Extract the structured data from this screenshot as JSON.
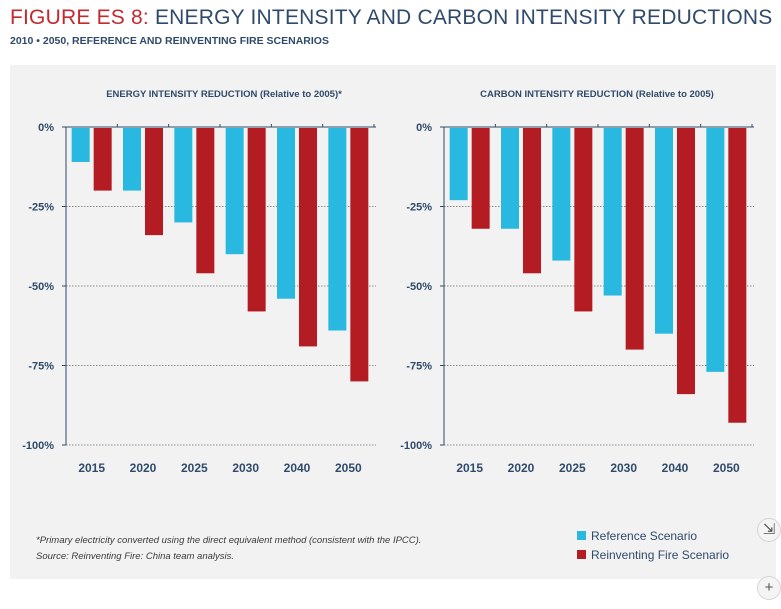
{
  "figure": {
    "title_prefix": "FIGURE ES 8:",
    "title_main": " ENERGY INTENSITY AND CARBON INTENSITY REDUCTIONS",
    "subtitle": "2010 • 2050, REFERENCE AND REINVENTING FIRE SCENARIOS"
  },
  "colors": {
    "reference": "#29b8df",
    "reinventing": "#b31c23",
    "axis": "#2f4a6a",
    "grid": "#8a8a8a"
  },
  "chart_data": [
    {
      "type": "bar",
      "title": "ENERGY INTENSITY REDUCTION (Relative to 2005)*",
      "categories": [
        "2015",
        "2020",
        "2025",
        "2030",
        "2040",
        "2050"
      ],
      "series": [
        {
          "name": "Reference Scenario",
          "values": [
            -11,
            -20,
            -30,
            -40,
            -54,
            -64
          ]
        },
        {
          "name": "Reinventing Fire Scenario",
          "values": [
            -20,
            -34,
            -46,
            -58,
            -69,
            -80
          ]
        }
      ],
      "ylim": [
        -100,
        0
      ],
      "yticks": [
        0,
        -25,
        -50,
        -75,
        -100
      ],
      "ytick_labels": [
        "0%",
        "-25%",
        "-50%",
        "-75%",
        "-100%"
      ],
      "grid": true
    },
    {
      "type": "bar",
      "title": "CARBON INTENSITY REDUCTION (Relative to 2005)",
      "categories": [
        "2015",
        "2020",
        "2025",
        "2030",
        "2040",
        "2050"
      ],
      "series": [
        {
          "name": "Reference Scenario",
          "values": [
            -23,
            -32,
            -42,
            -53,
            -65,
            -77
          ]
        },
        {
          "name": "Reinventing Fire Scenario",
          "values": [
            -32,
            -46,
            -58,
            -70,
            -84,
            -93
          ]
        }
      ],
      "ylim": [
        -100,
        0
      ],
      "yticks": [
        0,
        -25,
        -50,
        -75,
        -100
      ],
      "ytick_labels": [
        "0%",
        "-25%",
        "-50%",
        "-75%",
        "-100%"
      ],
      "grid": true
    }
  ],
  "footnote": {
    "line1": "*Primary electricity converted using the direct equivalent method (consistent with the IPCC).",
    "line2": "Source: Reinventing Fire: China team analysis."
  },
  "legend": {
    "placement": "bottom-right",
    "items": [
      "Reference Scenario",
      "Reinventing Fire Scenario"
    ]
  },
  "side_controls": {
    "collapse_icon": "collapse-icon",
    "add_icon": "plus-icon"
  }
}
